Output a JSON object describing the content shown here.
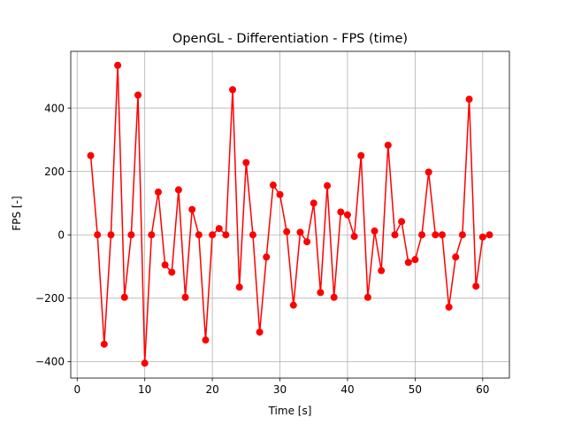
{
  "chart_data": {
    "type": "line",
    "title": "OpenGL - Differentiation - FPS (time)",
    "xlabel": "Time [s]",
    "ylabel": "FPS [-]",
    "xlim": [
      -0.95,
      63.95
    ],
    "ylim": [
      -452,
      579
    ],
    "xticks": [
      0,
      10,
      20,
      30,
      40,
      50,
      60
    ],
    "yticks": [
      -400,
      -200,
      0,
      200,
      400
    ],
    "grid": true,
    "series": [
      {
        "color": "#ff0000",
        "marker": "circle",
        "x": [
          2,
          3,
          4,
          5,
          6,
          7,
          8,
          9,
          10,
          11,
          12,
          13,
          14,
          15,
          16,
          17,
          18,
          19,
          20,
          21,
          22,
          23,
          24,
          25,
          26,
          27,
          28,
          29,
          30,
          31,
          32,
          33,
          34,
          35,
          36,
          37,
          38,
          39,
          40,
          41,
          42,
          43,
          44,
          45,
          46,
          47,
          48,
          49,
          50,
          51,
          52,
          53,
          54,
          55,
          56,
          57,
          58,
          59,
          60,
          61
        ],
        "y": [
          250,
          0,
          -345,
          0,
          535,
          -197,
          0,
          441,
          -405,
          0,
          135,
          -95,
          -118,
          142,
          -197,
          80,
          0,
          -332,
          0,
          20,
          0,
          458,
          -165,
          228,
          0,
          -307,
          -70,
          157,
          127,
          10,
          -222,
          8,
          -22,
          100,
          -182,
          155,
          -197,
          72,
          63,
          -5,
          250,
          -197,
          12,
          -113,
          283,
          0,
          42,
          -87,
          -78,
          0,
          198,
          0,
          0,
          -228,
          -70,
          0,
          428,
          -162,
          -7,
          0
        ]
      }
    ]
  }
}
